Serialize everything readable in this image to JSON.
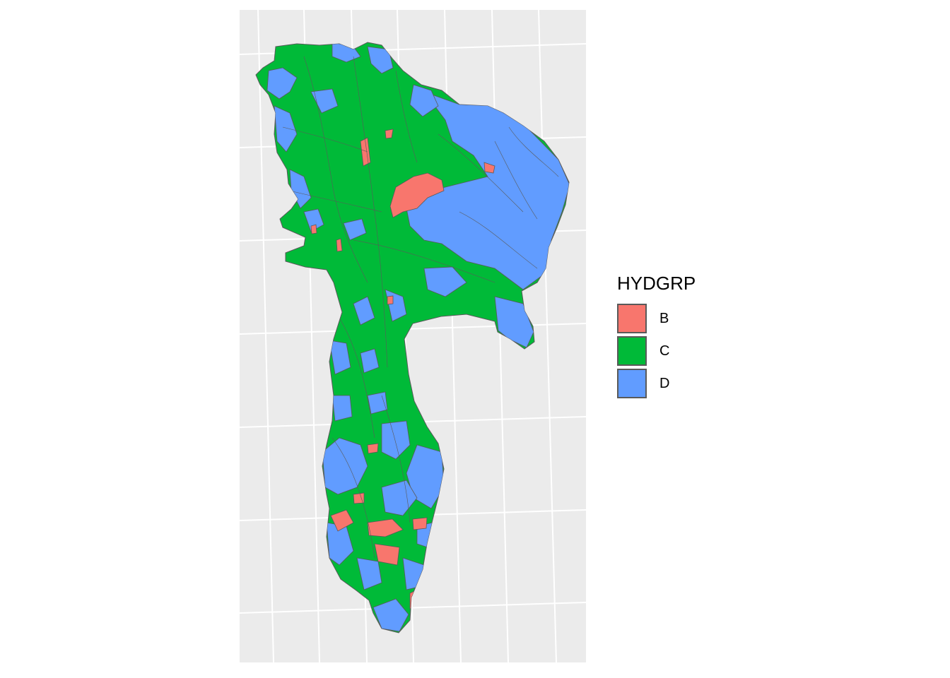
{
  "colors": {
    "panel_background": "#ebebeb",
    "gridline": "#ffffff",
    "polygon_border": "#5a5a5a",
    "B": "#f8766d",
    "C": "#00ba38",
    "D": "#619cff"
  },
  "legend": {
    "title": "HYDGRP",
    "items": [
      {
        "key": "B",
        "label": "B",
        "color": "#f8766d"
      },
      {
        "key": "C",
        "label": "C",
        "color": "#00ba38"
      },
      {
        "key": "D",
        "label": "D",
        "color": "#619cff"
      }
    ]
  }
}
